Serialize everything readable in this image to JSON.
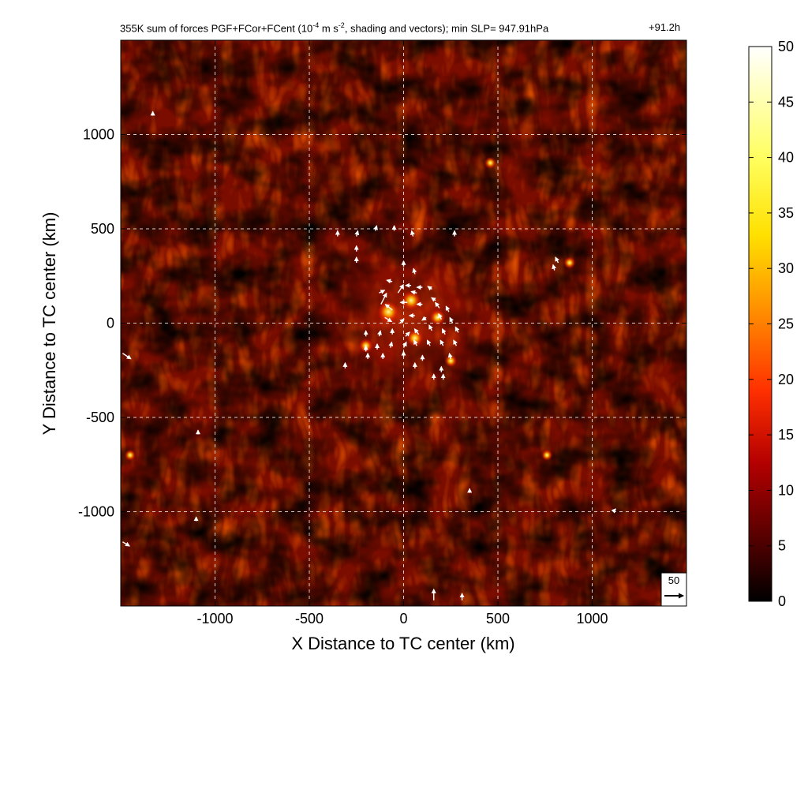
{
  "header": {
    "title_main": "355K sum of forces PGF+FCor+FCent (10",
    "title_exp1": "-4",
    "title_mid": " m s",
    "title_exp2": "-2",
    "title_end": ", shading and vectors); min SLP= 947.91hPa",
    "time_label": "+91.2h"
  },
  "chart_data": {
    "type": "heatmap",
    "title": "355K sum of forces PGF+FCor+FCent (10^-4 m s^-2, shading and vectors); min SLP= 947.91hPa",
    "time": "+91.2h",
    "xlabel": "X Distance to TC center (km)",
    "ylabel": "Y Distance to TC center (km)",
    "xlim": [
      -1500,
      1500
    ],
    "ylim": [
      -1500,
      1500
    ],
    "x_ticks": [
      -1000,
      -500,
      0,
      500,
      1000
    ],
    "y_ticks": [
      -1000,
      -500,
      0,
      500,
      1000
    ],
    "x_tick_labels": [
      "-1000",
      "-500",
      "0",
      "500",
      "1000"
    ],
    "y_tick_labels": [
      "-1000",
      "-500",
      "0",
      "500",
      "1000"
    ],
    "grid": true,
    "colorbar": {
      "min": 0,
      "max": 50,
      "ticks": [
        0,
        5,
        10,
        15,
        20,
        25,
        30,
        35,
        40,
        45,
        50
      ],
      "tick_labels": [
        "0",
        "5",
        "10",
        "15",
        "20",
        "25",
        "30",
        "35",
        "40",
        "45",
        "50"
      ],
      "colors": [
        "#000000",
        "#5a0000",
        "#b40000",
        "#ff3000",
        "#ff8c00",
        "#ffe000",
        "#ffff60",
        "#ffffff"
      ]
    },
    "reference_vector": {
      "label": "50",
      "value": 50
    },
    "hotspots": [
      {
        "x": -80,
        "y": 60,
        "value": 45
      },
      {
        "x": 40,
        "y": 120,
        "value": 38
      },
      {
        "x": 60,
        "y": -80,
        "value": 30
      },
      {
        "x": 180,
        "y": 30,
        "value": 28
      },
      {
        "x": -200,
        "y": -120,
        "value": 22
      },
      {
        "x": 250,
        "y": -200,
        "value": 18
      },
      {
        "x": 880,
        "y": 320,
        "value": 16
      },
      {
        "x": 460,
        "y": 850,
        "value": 16
      },
      {
        "x": 760,
        "y": -700,
        "value": 14
      },
      {
        "x": -1450,
        "y": -700,
        "value": 14
      }
    ],
    "vectors": [
      {
        "x": -350,
        "y": 460,
        "u": 0,
        "v": 20
      },
      {
        "x": -250,
        "y": 460,
        "u": 5,
        "v": 20
      },
      {
        "x": -150,
        "y": 490,
        "u": 5,
        "v": 18
      },
      {
        "x": -50,
        "y": 490,
        "u": 0,
        "v": 18
      },
      {
        "x": 50,
        "y": 460,
        "u": -5,
        "v": 20
      },
      {
        "x": 270,
        "y": 460,
        "u": 0,
        "v": 20
      },
      {
        "x": -250,
        "y": 380,
        "u": 0,
        "v": 20
      },
      {
        "x": -250,
        "y": 320,
        "u": 0,
        "v": 20
      },
      {
        "x": 0,
        "y": 300,
        "u": 0,
        "v": 20
      },
      {
        "x": 60,
        "y": 260,
        "u": -5,
        "v": 20
      },
      {
        "x": -60,
        "y": 220,
        "u": -20,
        "v": 5
      },
      {
        "x": 40,
        "y": 200,
        "u": -20,
        "v": 0
      },
      {
        "x": 100,
        "y": 190,
        "u": -20,
        "v": 0
      },
      {
        "x": 150,
        "y": 180,
        "u": -15,
        "v": 10
      },
      {
        "x": -130,
        "y": 160,
        "u": 20,
        "v": 10
      },
      {
        "x": -30,
        "y": 160,
        "u": 20,
        "v": 30
      },
      {
        "x": 70,
        "y": 160,
        "u": -20,
        "v": 5
      },
      {
        "x": 170,
        "y": 120,
        "u": -15,
        "v": 10
      },
      {
        "x": -120,
        "y": 100,
        "u": 20,
        "v": 40
      },
      {
        "x": -60,
        "y": 70,
        "u": -25,
        "v": 20
      },
      {
        "x": 20,
        "y": 110,
        "u": -25,
        "v": 0
      },
      {
        "x": 100,
        "y": 100,
        "u": -20,
        "v": 0
      },
      {
        "x": 190,
        "y": 80,
        "u": -15,
        "v": 20
      },
      {
        "x": 240,
        "y": 60,
        "u": -10,
        "v": 20
      },
      {
        "x": -100,
        "y": 30,
        "u": 25,
        "v": -15
      },
      {
        "x": -20,
        "y": 0,
        "u": 15,
        "v": 15
      },
      {
        "x": 60,
        "y": 40,
        "u": -20,
        "v": 0
      },
      {
        "x": 120,
        "y": 30,
        "u": -15,
        "v": -10
      },
      {
        "x": 200,
        "y": 20,
        "u": -10,
        "v": 20
      },
      {
        "x": 260,
        "y": 0,
        "u": -10,
        "v": 20
      },
      {
        "x": -200,
        "y": -70,
        "u": 0,
        "v": 20
      },
      {
        "x": -130,
        "y": -70,
        "u": 5,
        "v": 20
      },
      {
        "x": -60,
        "y": -60,
        "u": 0,
        "v": 20
      },
      {
        "x": 10,
        "y": -70,
        "u": 15,
        "v": 15
      },
      {
        "x": 80,
        "y": -60,
        "u": -15,
        "v": 20
      },
      {
        "x": 150,
        "y": -40,
        "u": -10,
        "v": 20
      },
      {
        "x": 220,
        "y": -60,
        "u": -10,
        "v": 20
      },
      {
        "x": 290,
        "y": -50,
        "u": -10,
        "v": 20
      },
      {
        "x": -200,
        "y": -150,
        "u": 0,
        "v": 20
      },
      {
        "x": -140,
        "y": -140,
        "u": 0,
        "v": 20
      },
      {
        "x": -70,
        "y": -130,
        "u": 5,
        "v": 20
      },
      {
        "x": 0,
        "y": -130,
        "u": 10,
        "v": 20
      },
      {
        "x": 70,
        "y": -120,
        "u": -10,
        "v": 20
      },
      {
        "x": 140,
        "y": -120,
        "u": -10,
        "v": 20
      },
      {
        "x": 210,
        "y": -120,
        "u": -10,
        "v": 20
      },
      {
        "x": 280,
        "y": -120,
        "u": -10,
        "v": 20
      },
      {
        "x": -190,
        "y": -190,
        "u": 0,
        "v": 20
      },
      {
        "x": -110,
        "y": -190,
        "u": 0,
        "v": 20
      },
      {
        "x": 0,
        "y": -180,
        "u": 0,
        "v": 20
      },
      {
        "x": 100,
        "y": -200,
        "u": 0,
        "v": 20
      },
      {
        "x": 250,
        "y": -190,
        "u": -5,
        "v": 20
      },
      {
        "x": -310,
        "y": -240,
        "u": 0,
        "v": 20
      },
      {
        "x": 60,
        "y": -240,
        "u": 0,
        "v": 20
      },
      {
        "x": 200,
        "y": -260,
        "u": 0,
        "v": 20
      },
      {
        "x": 160,
        "y": -300,
        "u": 0,
        "v": 20
      },
      {
        "x": 210,
        "y": -300,
        "u": 0,
        "v": 20
      },
      {
        "x": 820,
        "y": 320,
        "u": -10,
        "v": 20
      },
      {
        "x": 800,
        "y": 280,
        "u": -5,
        "v": 20
      },
      {
        "x": -1490,
        "y": -160,
        "u": 30,
        "v": -20
      },
      {
        "x": 160,
        "y": -1470,
        "u": 0,
        "v": 40
      },
      {
        "x": 310,
        "y": -1470,
        "u": 0,
        "v": 25
      },
      {
        "x": 350,
        "y": -900,
        "u": 0,
        "v": 15
      },
      {
        "x": 1110,
        "y": -1000,
        "u": 10,
        "v": 10
      },
      {
        "x": -1090,
        "y": -590,
        "u": 0,
        "v": 15
      },
      {
        "x": -1100,
        "y": -1050,
        "u": 0,
        "v": 15
      },
      {
        "x": -1330,
        "y": 1100,
        "u": 0,
        "v": 15
      },
      {
        "x": -1490,
        "y": -1160,
        "u": 25,
        "v": -15
      }
    ]
  }
}
